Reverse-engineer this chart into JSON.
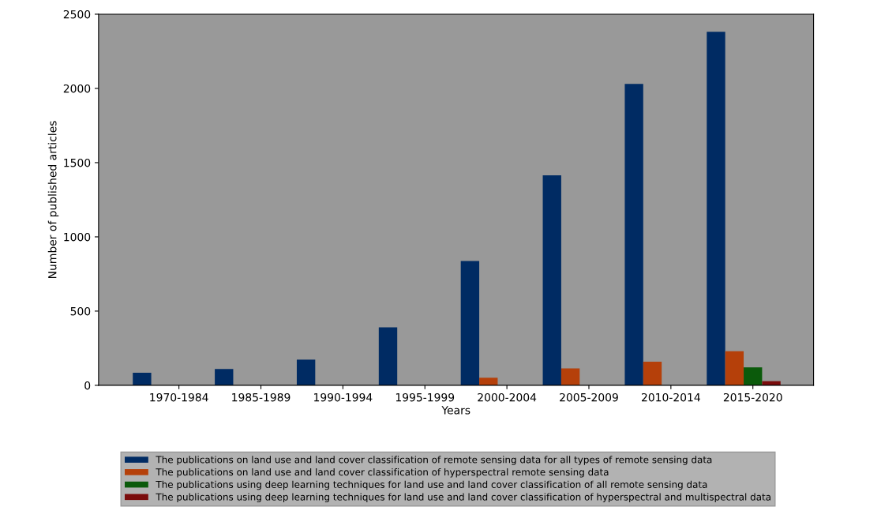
{
  "chart_data": {
    "type": "bar",
    "xlabel": "Years",
    "ylabel": "Number of published articles",
    "categories": [
      "1970-1984",
      "1985-1989",
      "1990-1994",
      "1995-1999",
      "2000-2004",
      "2005-2009",
      "2010-2014",
      "2015-2020"
    ],
    "series": [
      {
        "name": "The publications on land use and land cover classification of remote sensing data for all types of remote sensing data",
        "color": "#002b63",
        "values": [
          85,
          110,
          173,
          391,
          837,
          1414,
          2031,
          2382
        ]
      },
      {
        "name": "The publications on land use and land cover classification of hyperspectral remote sensing data",
        "color": "#b5400a",
        "values": [
          0,
          0,
          0,
          0,
          51,
          114,
          159,
          230
        ]
      },
      {
        "name": "The publications using deep learning techniques for land use and land cover classification of all remote sensing data",
        "color": "#0b5a0b",
        "values": [
          0,
          0,
          0,
          0,
          0,
          0,
          0,
          121
        ]
      },
      {
        "name": "The publications using deep learning techniques for land use and land cover classification of hyperspectral and multispectral data",
        "color": "#7a0c0c",
        "values": [
          0,
          0,
          0,
          0,
          0,
          0,
          0,
          28
        ]
      }
    ],
    "ylim": [
      0,
      2500
    ],
    "yticks": [
      0,
      500,
      1000,
      1500,
      2000,
      2500
    ],
    "grid": false,
    "legend": "bottom"
  }
}
